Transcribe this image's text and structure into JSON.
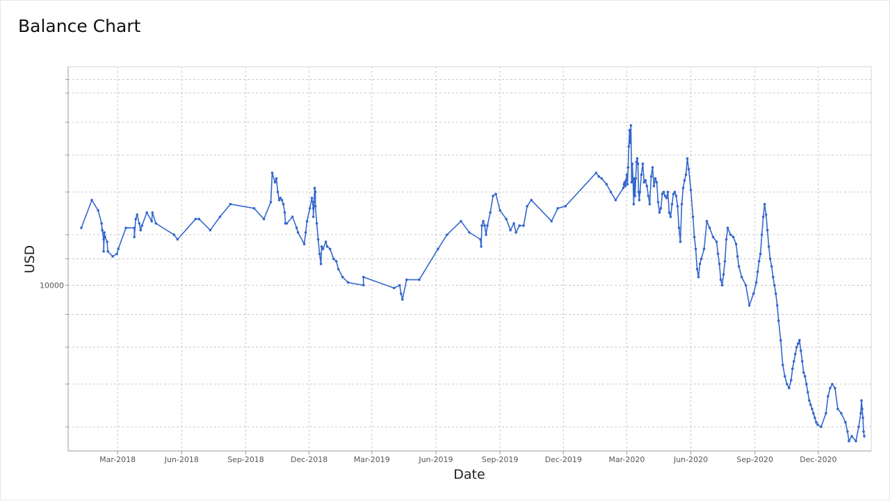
{
  "chart_data": {
    "type": "line",
    "title": "Balance Chart",
    "xlabel": "Date",
    "ylabel": "USD",
    "yscale": "log",
    "xlim": [
      "2017-12-20",
      "2021-02-15"
    ],
    "ylim": [
      5500,
      22000
    ],
    "x_ticks": [
      "2018-03-01",
      "2018-06-01",
      "2018-09-01",
      "2018-12-01",
      "2019-03-01",
      "2019-06-01",
      "2019-09-01",
      "2019-12-01",
      "2020-03-01",
      "2020-06-01",
      "2020-09-01",
      "2020-12-01"
    ],
    "x_tick_labels": [
      "Mar-2018",
      "Jun-2018",
      "Sep-2018",
      "Dec-2018",
      "Mar-2019",
      "Jun-2019",
      "Sep-2019",
      "Dec-2019",
      "Mar-2020",
      "Jun-2020",
      "Sep-2020",
      "Dec-2020"
    ],
    "y_ticks": [
      10000
    ],
    "y_tick_labels": [
      "10000"
    ],
    "y_gridlines": [
      6000,
      7000,
      8000,
      9000,
      10000,
      11000,
      12000,
      14000,
      16000,
      18000,
      20000,
      21000
    ],
    "grid": true,
    "line_color": "#3366cc",
    "series": [
      {
        "x": [
          "2018-01-08",
          "2018-01-23",
          "2018-02-01",
          "2018-02-06",
          "2018-02-07",
          "2018-02-09",
          "2018-02-09",
          "2018-02-10",
          "2018-02-11",
          "2018-02-14",
          "2018-02-15",
          "2018-02-22",
          "2018-02-28",
          "2018-03-02",
          "2018-03-13",
          "2018-03-25",
          "2018-03-25",
          "2018-03-27",
          "2018-03-29",
          "2018-04-01",
          "2018-04-03",
          "2018-04-05",
          "2018-04-12",
          "2018-04-19",
          "2018-04-20",
          "2018-04-25",
          "2018-05-21",
          "2018-05-26",
          "2018-06-21",
          "2018-06-26",
          "2018-07-12",
          "2018-07-26",
          "2018-08-10",
          "2018-09-13",
          "2018-09-27",
          "2018-10-07",
          "2018-10-09",
          "2018-10-13",
          "2018-10-15",
          "2018-10-17",
          "2018-10-19",
          "2018-10-21",
          "2018-10-23",
          "2018-10-25",
          "2018-10-27",
          "2018-10-28",
          "2018-10-30",
          "2018-11-07",
          "2018-11-13",
          "2018-11-15",
          "2018-11-24",
          "2018-11-26",
          "2018-11-28",
          "2018-12-02",
          "2018-12-05",
          "2018-12-07",
          "2018-12-07",
          "2018-12-08",
          "2018-12-09",
          "2018-12-10",
          "2018-12-10",
          "2018-12-12",
          "2018-12-14",
          "2018-12-16",
          "2018-12-18",
          "2018-12-19",
          "2018-12-21",
          "2018-12-25",
          "2018-12-27",
          "2018-12-31",
          "2019-01-05",
          "2019-01-09",
          "2019-01-12",
          "2019-01-18",
          "2019-01-26",
          "2019-02-17",
          "2019-02-17",
          "2019-04-02",
          "2019-04-10",
          "2019-04-12",
          "2019-04-14",
          "2019-04-20",
          "2019-05-08",
          "2019-06-04",
          "2019-06-17",
          "2019-07-07",
          "2019-07-19",
          "2019-08-04",
          "2019-08-05",
          "2019-08-06",
          "2019-08-08",
          "2019-08-10",
          "2019-08-12",
          "2019-08-14",
          "2019-08-18",
          "2019-08-22",
          "2019-08-26",
          "2019-09-01",
          "2019-09-10",
          "2019-09-16",
          "2019-09-21",
          "2019-09-24",
          "2019-09-29",
          "2019-10-05",
          "2019-10-10",
          "2019-10-16",
          "2019-11-14",
          "2019-11-23",
          "2019-12-04",
          "2020-01-17",
          "2020-01-21",
          "2020-01-25",
          "2020-02-01",
          "2020-02-07",
          "2020-02-14",
          "2020-02-25",
          "2020-02-26",
          "2020-02-27",
          "2020-02-28",
          "2020-02-29",
          "2020-03-01",
          "2020-03-02",
          "2020-03-03",
          "2020-03-04",
          "2020-03-05",
          "2020-03-06",
          "2020-03-07",
          "2020-03-08",
          "2020-03-09",
          "2020-03-10",
          "2020-03-11",
          "2020-03-12",
          "2020-03-13",
          "2020-03-14",
          "2020-03-15",
          "2020-03-16",
          "2020-03-17",
          "2020-03-18",
          "2020-03-19",
          "2020-03-20",
          "2020-03-22",
          "2020-03-24",
          "2020-03-26",
          "2020-03-28",
          "2020-03-30",
          "2020-04-01",
          "2020-04-03",
          "2020-04-05",
          "2020-04-07",
          "2020-04-09",
          "2020-04-11",
          "2020-04-13",
          "2020-04-15",
          "2020-04-17",
          "2020-04-19",
          "2020-04-21",
          "2020-04-23",
          "2020-04-25",
          "2020-04-27",
          "2020-04-29",
          "2020-05-01",
          "2020-05-03",
          "2020-05-05",
          "2020-05-07",
          "2020-05-09",
          "2020-05-11",
          "2020-05-13",
          "2020-05-15",
          "2020-05-17",
          "2020-05-19",
          "2020-05-21",
          "2020-05-23",
          "2020-05-25",
          "2020-05-27",
          "2020-05-29",
          "2020-06-01",
          "2020-06-04",
          "2020-06-06",
          "2020-06-08",
          "2020-06-10",
          "2020-06-12",
          "2020-06-14",
          "2020-06-16",
          "2020-06-20",
          "2020-06-24",
          "2020-06-28",
          "2020-07-03",
          "2020-07-08",
          "2020-07-10",
          "2020-07-12",
          "2020-07-14",
          "2020-07-16",
          "2020-07-18",
          "2020-07-20",
          "2020-07-22",
          "2020-07-24",
          "2020-07-28",
          "2020-08-01",
          "2020-08-05",
          "2020-08-07",
          "2020-08-09",
          "2020-08-13",
          "2020-08-19",
          "2020-08-24",
          "2020-08-30",
          "2020-09-03",
          "2020-09-05",
          "2020-09-07",
          "2020-09-09",
          "2020-09-11",
          "2020-09-13",
          "2020-09-15",
          "2020-09-17",
          "2020-09-19",
          "2020-09-21",
          "2020-09-23",
          "2020-09-25",
          "2020-09-27",
          "2020-09-29",
          "2020-10-01",
          "2020-10-03",
          "2020-10-05",
          "2020-10-08",
          "2020-10-11",
          "2020-10-14",
          "2020-10-17",
          "2020-10-20",
          "2020-10-23",
          "2020-10-25",
          "2020-10-27",
          "2020-10-29",
          "2020-10-31",
          "2020-11-02",
          "2020-11-04",
          "2020-11-06",
          "2020-11-08",
          "2020-11-10",
          "2020-11-12",
          "2020-11-14",
          "2020-11-16",
          "2020-11-18",
          "2020-11-20",
          "2020-11-22",
          "2020-11-24",
          "2020-11-26",
          "2020-11-28",
          "2020-11-30",
          "2020-12-05",
          "2020-12-12",
          "2020-12-15",
          "2020-12-18",
          "2020-12-21",
          "2020-12-25",
          "2020-12-29",
          "2021-01-03",
          "2021-01-09",
          "2021-01-12",
          "2021-01-14",
          "2021-01-18",
          "2021-01-24",
          "2021-01-28",
          "2021-01-31",
          "2021-02-01",
          "2021-02-02",
          "2021-02-03",
          "2021-02-04",
          "2021-02-05"
        ],
        "values": [
          12300,
          13600,
          13100,
          12500,
          12200,
          11800,
          11300,
          12100,
          11900,
          11700,
          11300,
          11100,
          11200,
          11400,
          12300,
          12300,
          11900,
          12700,
          12900,
          12500,
          12200,
          12400,
          13000,
          12600,
          13000,
          12500,
          12000,
          11800,
          12700,
          12700,
          12200,
          12800,
          13400,
          13200,
          12700,
          13500,
          15000,
          14500,
          14700,
          14000,
          13600,
          13700,
          13600,
          13400,
          13000,
          12500,
          12500,
          12800,
          12300,
          12100,
          11600,
          12100,
          12600,
          13200,
          13700,
          13200,
          12800,
          13500,
          14200,
          14000,
          13300,
          12500,
          11800,
          11200,
          10800,
          11500,
          11400,
          11700,
          11500,
          11400,
          11000,
          10900,
          10600,
          10300,
          10100,
          10000,
          10300,
          9900,
          10000,
          9700,
          9500,
          10200,
          10200,
          11400,
          12000,
          12600,
          12100,
          11800,
          11500,
          12400,
          12600,
          12400,
          12000,
          12400,
          13000,
          13800,
          13900,
          13100,
          12700,
          12200,
          12500,
          12100,
          12400,
          12400,
          13300,
          13600,
          12600,
          13200,
          13300,
          15000,
          14800,
          14700,
          14400,
          14000,
          13600,
          14200,
          14400,
          14500,
          14300,
          14600,
          14900,
          14400,
          15300,
          16500,
          17500,
          16700,
          17800,
          14500,
          15500,
          14600,
          13400,
          14700,
          13800,
          14700,
          15600,
          15800,
          15500,
          14000,
          13600,
          14000,
          14900,
          15500,
          14500,
          14600,
          14300,
          13800,
          13400,
          14800,
          15300,
          14300,
          14700,
          14500,
          13500,
          13000,
          13200,
          13900,
          14000,
          13800,
          13700,
          14000,
          13000,
          12800,
          13400,
          13900,
          14000,
          13800,
          13300,
          12300,
          11700,
          13400,
          14200,
          14600,
          14900,
          15800,
          15200,
          14100,
          12800,
          11900,
          11400,
          10600,
          10300,
          10800,
          11000,
          11400,
          12600,
          12300,
          11900,
          11700,
          11200,
          10800,
          10200,
          10000,
          10400,
          10900,
          11800,
          12300,
          12000,
          11900,
          11600,
          11100,
          10700,
          10300,
          10000,
          9300,
          9700,
          10100,
          10500,
          10900,
          11200,
          12000,
          12800,
          13400,
          12900,
          12200,
          11500,
          11000,
          10700,
          10300,
          10000,
          9700,
          9300,
          8800,
          8200,
          7500,
          7200,
          7000,
          6900,
          7100,
          7400,
          7600,
          7800,
          8000,
          8100,
          8200,
          7900,
          7600,
          7300,
          7200,
          7000,
          6800,
          6600,
          6500,
          6400,
          6300,
          6200,
          6100,
          6050,
          6000,
          6300,
          6700,
          6900,
          7000,
          6900,
          6400,
          6300,
          6100,
          5900,
          5700,
          5800,
          5700,
          6000,
          6300,
          6600,
          6400,
          6200,
          5900,
          5800
        ]
      }
    ]
  }
}
